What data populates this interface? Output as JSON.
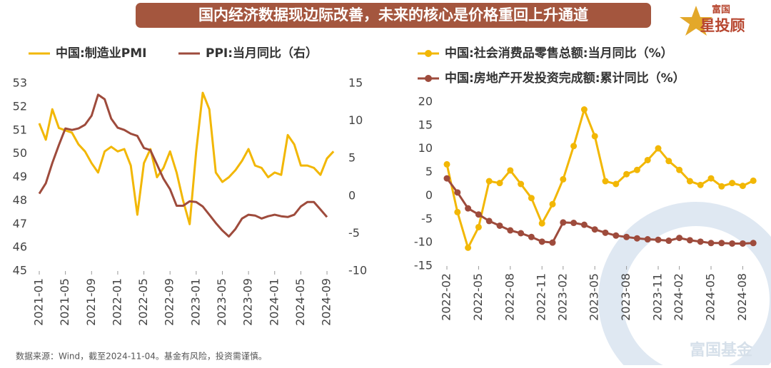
{
  "header": {
    "title": "国内经济数据现边际改善，未来的核心是价格重回上升通道",
    "logo": [
      "富国",
      "星投顾"
    ],
    "watermark": "富国基金"
  },
  "source": "数据来源：Wind，截至2024-11-04。基金有风险，投资需谨慎。",
  "chart_data": [
    {
      "type": "line",
      "legend": "top",
      "categories": [
        "2021-01",
        null,
        null,
        null,
        "2021-05",
        null,
        null,
        null,
        "2021-09",
        null,
        null,
        null,
        "2022-01",
        null,
        null,
        null,
        "2022-05",
        null,
        null,
        null,
        "2022-09",
        null,
        null,
        null,
        "2023-01",
        null,
        null,
        null,
        "2023-05",
        null,
        null,
        null,
        "2023-09",
        null,
        null,
        null,
        "2024-01",
        null,
        null,
        null,
        "2024-05",
        null,
        null,
        null,
        "2024-09",
        null
      ],
      "series": [
        {
          "name": "中国:制造业PMI",
          "color": "#f2b705",
          "values": [
            51.3,
            50.6,
            51.9,
            51.1,
            51.0,
            50.9,
            50.4,
            50.1,
            49.6,
            49.2,
            50.1,
            50.3,
            50.1,
            50.2,
            49.5,
            47.4,
            49.6,
            50.2,
            49.0,
            49.4,
            50.1,
            49.2,
            48.0,
            47.0,
            50.1,
            52.6,
            51.9,
            49.2,
            48.8,
            49.0,
            49.3,
            49.7,
            50.2,
            49.5,
            49.4,
            49.0,
            49.2,
            49.1,
            50.8,
            50.4,
            49.5,
            49.5,
            49.4,
            49.1,
            49.8,
            50.1
          ]
        },
        {
          "name": "PPI:当月同比（右）",
          "color": "#9e4b3c",
          "axis": "y2",
          "values": [
            0.3,
            1.7,
            4.4,
            6.8,
            9.0,
            8.8,
            9.0,
            9.5,
            10.7,
            13.5,
            12.9,
            10.3,
            9.1,
            8.8,
            8.3,
            8.0,
            6.4,
            6.1,
            4.2,
            2.3,
            0.9,
            -1.3,
            -1.3,
            -0.7,
            -0.8,
            -1.4,
            -2.5,
            -3.6,
            -4.6,
            -5.4,
            -4.4,
            -3.0,
            -2.5,
            -2.6,
            -3.0,
            -2.7,
            -2.5,
            -2.7,
            -2.8,
            -2.5,
            -1.4,
            -0.8,
            -0.8,
            -1.8,
            -2.8,
            null
          ]
        }
      ],
      "ylim": [
        45,
        53
      ],
      "yticks": [
        45,
        46,
        47,
        48,
        49,
        50,
        51,
        52,
        53
      ],
      "y2lim": [
        -10,
        15
      ],
      "y2ticks": [
        -10,
        -5,
        0,
        5,
        10,
        15
      ]
    },
    {
      "type": "line",
      "legend": "top",
      "markers": true,
      "categories": [
        "2022-02",
        null,
        null,
        "2022-05",
        null,
        null,
        "2022-08",
        null,
        null,
        "2022-11",
        null,
        "2023-02",
        null,
        null,
        "2023-05",
        null,
        null,
        "2023-08",
        null,
        null,
        "2023-11",
        null,
        "2024-02",
        null,
        null,
        "2024-05",
        null,
        null,
        "2024-08",
        null
      ],
      "series": [
        {
          "name": "中国:社会消费品零售总额:当月同比（%）",
          "color": "#f2b705",
          "values": [
            6.7,
            -3.5,
            -11.1,
            -6.7,
            3.1,
            2.7,
            5.4,
            2.5,
            -0.5,
            -5.9,
            -1.8,
            3.5,
            10.6,
            18.4,
            12.7,
            3.1,
            2.5,
            4.6,
            5.5,
            7.6,
            10.1,
            7.4,
            5.5,
            3.1,
            2.3,
            3.7,
            2.0,
            2.7,
            2.1,
            3.2
          ]
        },
        {
          "name": "中国:房地产开发投资完成额:累计同比（%）",
          "color": "#9e4b3c",
          "values": [
            3.7,
            0.7,
            -2.7,
            -4.0,
            -5.4,
            -6.4,
            -7.4,
            -8.0,
            -8.8,
            -9.8,
            -10.0,
            -5.7,
            -5.8,
            -6.2,
            -7.2,
            -7.9,
            -8.5,
            -8.8,
            -9.1,
            -9.3,
            -9.4,
            -9.6,
            -9.0,
            -9.5,
            -9.8,
            -10.1,
            -10.1,
            -10.2,
            -10.2,
            -10.1
          ]
        }
      ],
      "ylim": [
        -15,
        20
      ],
      "yticks": [
        -15,
        -10,
        -5,
        0,
        5,
        10,
        15,
        20
      ]
    }
  ]
}
